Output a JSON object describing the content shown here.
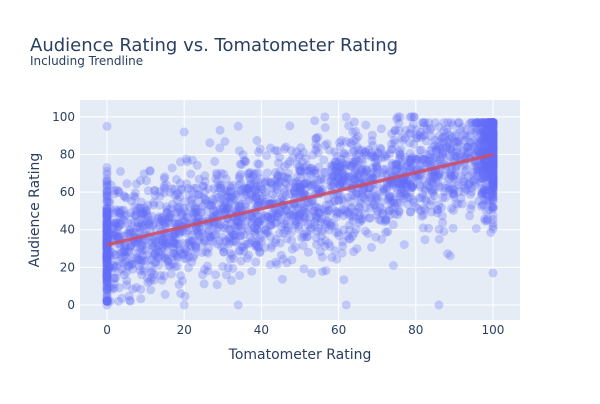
{
  "chart_data": {
    "type": "scatter",
    "title": "Audience Rating vs. Tomatometer Rating",
    "subtitle": "Including Trendline",
    "xlabel": "Tomatometer Rating",
    "ylabel": "Audience Rating",
    "xlim": [
      -7,
      107
    ],
    "ylim": [
      -8,
      109
    ],
    "x_ticks": [
      0,
      20,
      40,
      60,
      80,
      100
    ],
    "y_ticks": [
      0,
      20,
      40,
      60,
      80,
      100
    ],
    "grid": true,
    "legend": "none",
    "colors": {
      "points": "#636efa",
      "trendline": "#c94f6d",
      "plot_bg": "#e5ecf6",
      "text": "#2a3f5f"
    },
    "point_opacity": 0.3,
    "trendline": {
      "x": [
        0,
        100
      ],
      "y": [
        32,
        80
      ]
    },
    "point_cloud_estimate": {
      "count": 2600,
      "x_range": [
        0,
        100
      ],
      "center_line": {
        "y_at_x0": 32,
        "y_at_x100": 80
      },
      "spread_sd": 15,
      "outliers": [
        [
          0,
          0
        ],
        [
          20,
          0
        ],
        [
          34,
          0
        ],
        [
          62,
          0
        ],
        [
          86,
          0
        ],
        [
          0,
          95
        ],
        [
          20,
          92
        ],
        [
          34,
          95
        ],
        [
          100,
          17
        ]
      ]
    }
  }
}
